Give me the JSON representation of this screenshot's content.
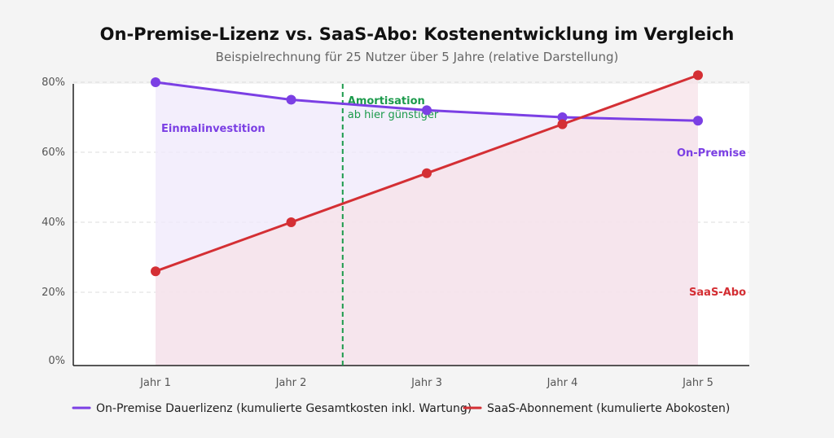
{
  "colors": {
    "onprem": "#7b3fe4",
    "saas": "#d42f34",
    "amortisation": "#1b9a4b",
    "onprem_fill": "#efe8fb",
    "saas_fill": "#f7e1e8"
  },
  "chart_data": {
    "type": "line",
    "title": "On-Premise-Lizenz vs. SaaS-Abo: Kostenentwicklung im Vergleich",
    "subtitle": "Beispielrechnung für 25 Nutzer über 5 Jahre (relative Darstellung)",
    "categories": [
      "Jahr 1",
      "Jahr 2",
      "Jahr 3",
      "Jahr 4",
      "Jahr 5"
    ],
    "ylim": [
      0,
      100
    ],
    "yticks": [
      0,
      20,
      40,
      60,
      80
    ],
    "ytick_labels": [
      "0%",
      "20%",
      "40%",
      "60%",
      "80%"
    ],
    "grid": true,
    "legend_position": "bottom",
    "series": [
      {
        "name": "On-Premise Dauerlizenz (kumulierte Gesamtkosten inkl. Wartung)",
        "values": [
          80,
          75,
          72,
          70,
          69
        ],
        "area": true
      },
      {
        "name": "SaaS-Abonnement (kumulierte Abokosten)",
        "values": [
          26,
          40,
          54,
          68,
          82
        ],
        "area": true
      }
    ],
    "annotations": {
      "amortisation_line_x": 2.38,
      "amortisation_title": "Amortisation",
      "amortisation_sub": "ab hier günstiger",
      "onprem_start": "Einmalinvestition",
      "onprem_end": "On-Premise",
      "saas_end": "SaaS-Abo"
    }
  }
}
